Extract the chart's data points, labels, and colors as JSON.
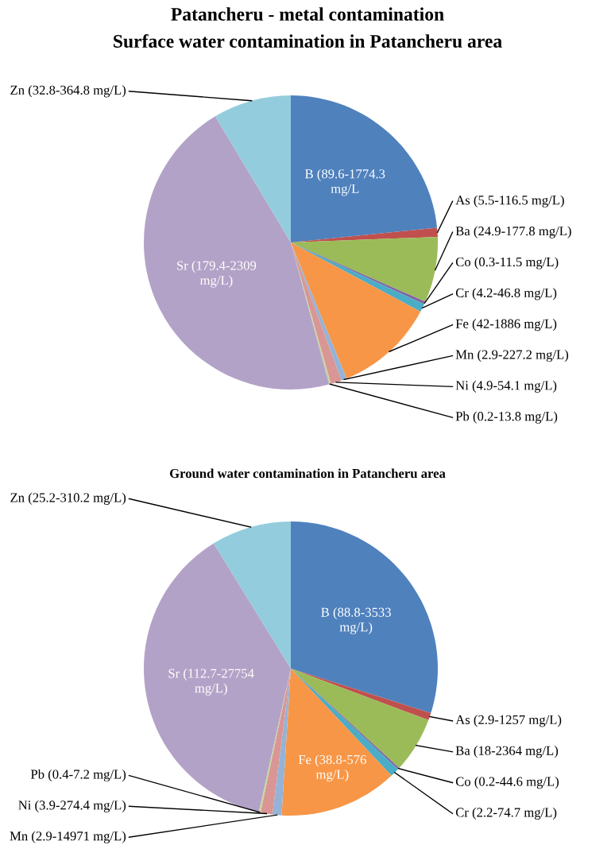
{
  "chart_data": [
    {
      "type": "pie",
      "title": "Patancheru - metal contamination",
      "subtitle": "Surface water contamination in Patancheru area",
      "categories": [
        "B (89.6-1774.3 mg/L",
        "As (5.5-116.5 mg/L)",
        "Ba (24.9-177.8 mg/L)",
        "Co (0.3-11.5 mg/L)",
        "Cr (4.2-46.8 mg/L)",
        "Fe (42-1886 mg/L)",
        "Mn (2.9-227.2 mg/L)",
        "Ni (4.9-54.1 mg/L)",
        "Pb (0.2-13.8 mg/L)",
        "Sr (179.4-2309 mg/L)",
        "Zn (32.8-364.8 mg/L)"
      ],
      "values": [
        23.4,
        1.0,
        7.2,
        0.3,
        0.9,
        11.0,
        0.6,
        1.2,
        0.2,
        45.6,
        8.6
      ],
      "colors": [
        "#4f81bd",
        "#c0504d",
        "#9bbb59",
        "#8064a2",
        "#4bacc6",
        "#f79646",
        "#95b3d7",
        "#d99694",
        "#c3d69b",
        "#b3a2c7",
        "#93cddd"
      ]
    },
    {
      "type": "pie",
      "title": "Ground water contamination in Patancheru area",
      "categories": [
        "B (88.8-3533 mg/L)",
        "As (2.9-1257 mg/L)",
        "Ba (18-2364 mg/L)",
        "Co (0.2-44.6 mg/L)",
        "Cr (2.2-74.7 mg/L)",
        "Fe (38.8-576 mg/L)",
        "Mn (2.9-14971 mg/L)",
        "Ni (3.9-274.4 mg/L)",
        "Pb (0.4-7.2 mg/L)",
        "Sr (112.7-27754 mg/L)",
        "Zn (25.2-310.2 mg/L)"
      ],
      "values": [
        29.9,
        0.8,
        6.1,
        0.2,
        1.0,
        13.0,
        1.0,
        1.3,
        0.2,
        37.7,
        8.8
      ],
      "colors": [
        "#4f81bd",
        "#c0504d",
        "#9bbb59",
        "#8064a2",
        "#4bacc6",
        "#f79646",
        "#95b3d7",
        "#d99694",
        "#c3d69b",
        "#b3a2c7",
        "#93cddd"
      ]
    }
  ]
}
